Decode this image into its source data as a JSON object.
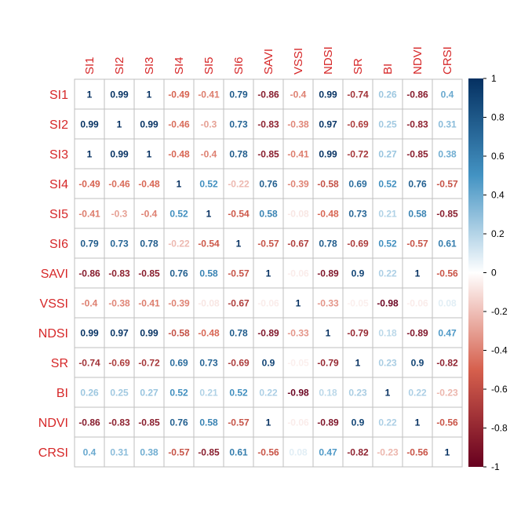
{
  "chart_data": {
    "type": "heatmap",
    "title": "",
    "variables": [
      "SI1",
      "SI2",
      "SI3",
      "SI4",
      "SI5",
      "SI6",
      "SAVI",
      "VSSI",
      "NDSI",
      "SR",
      "BI",
      "NDVI",
      "CRSI"
    ],
    "matrix": [
      [
        1,
        0.99,
        1,
        -0.49,
        -0.41,
        0.79,
        -0.86,
        -0.4,
        0.99,
        -0.74,
        0.26,
        -0.86,
        0.4
      ],
      [
        0.99,
        1,
        0.99,
        -0.46,
        -0.3,
        0.73,
        -0.83,
        -0.38,
        0.97,
        -0.69,
        0.25,
        -0.83,
        0.31
      ],
      [
        1,
        0.99,
        1,
        -0.48,
        -0.4,
        0.78,
        -0.85,
        -0.41,
        0.99,
        -0.72,
        0.27,
        -0.85,
        0.38
      ],
      [
        -0.49,
        -0.46,
        -0.48,
        1,
        0.52,
        -0.22,
        0.76,
        -0.39,
        -0.58,
        0.69,
        0.52,
        0.76,
        -0.57
      ],
      [
        -0.41,
        -0.3,
        -0.4,
        0.52,
        1,
        -0.54,
        0.58,
        -0.08,
        -0.48,
        0.73,
        0.21,
        0.58,
        -0.85
      ],
      [
        0.79,
        0.73,
        0.78,
        -0.22,
        -0.54,
        1,
        -0.57,
        -0.67,
        0.78,
        -0.69,
        0.52,
        -0.57,
        0.61
      ],
      [
        -0.86,
        -0.83,
        -0.85,
        0.76,
        0.58,
        -0.57,
        1,
        -0.06,
        -0.89,
        0.9,
        0.22,
        1,
        -0.56
      ],
      [
        -0.4,
        -0.38,
        -0.41,
        -0.39,
        -0.08,
        -0.67,
        -0.06,
        1,
        -0.33,
        -0.05,
        -0.98,
        -0.06,
        0.08
      ],
      [
        0.99,
        0.97,
        0.99,
        -0.58,
        -0.48,
        0.78,
        -0.89,
        -0.33,
        1,
        -0.79,
        0.18,
        -0.89,
        0.47
      ],
      [
        -0.74,
        -0.69,
        -0.72,
        0.69,
        0.73,
        -0.69,
        0.9,
        -0.05,
        -0.79,
        1,
        0.23,
        0.9,
        -0.82
      ],
      [
        0.26,
        0.25,
        0.27,
        0.52,
        0.21,
        0.52,
        0.22,
        -0.98,
        0.18,
        0.23,
        1,
        0.22,
        -0.23
      ],
      [
        -0.86,
        -0.83,
        -0.85,
        0.76,
        0.58,
        -0.57,
        1,
        -0.06,
        -0.89,
        0.9,
        0.22,
        1,
        -0.56
      ],
      [
        0.4,
        0.31,
        0.38,
        -0.57,
        -0.85,
        0.61,
        -0.56,
        0.08,
        0.47,
        -0.82,
        -0.23,
        -0.56,
        1
      ]
    ],
    "colorbar": {
      "range": [
        -1,
        1
      ],
      "ticks": [
        "1",
        "0.8",
        "0.6",
        "0.4",
        "0.2",
        "0",
        "-0.2",
        "-0.4",
        "-0.6",
        "-0.8",
        "-1"
      ],
      "placement": "right"
    },
    "colors": {
      "label": "#d62728",
      "grid": "#bfbfbf",
      "neg_strong": "#67001f",
      "neg_mid": "#d6604d",
      "neutral": "#ffffff",
      "pos_mid": "#4393c3",
      "pos_strong": "#053061"
    }
  }
}
